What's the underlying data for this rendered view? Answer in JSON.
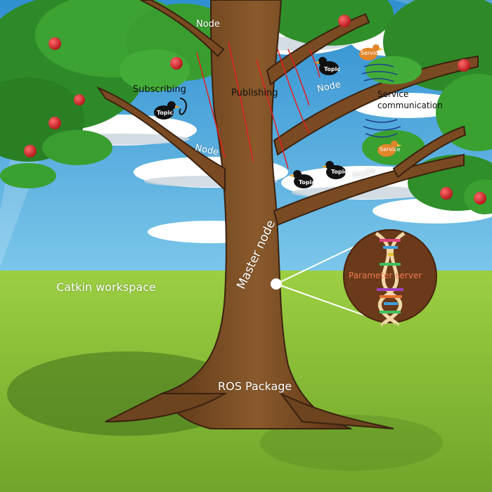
{
  "labels": {
    "node": "Node",
    "subscribing": "Subscribing",
    "publishing": "Publishing",
    "service_communication_line1": "Service",
    "service_communication_line2": "communication",
    "master_node": "Master node",
    "parameter_server": "Parameter server",
    "catkin_workspace": "Catkin workspace",
    "ros_package": "ROS Package"
  },
  "badges": {
    "topic": "Topic",
    "service": "Service"
  },
  "icons": [
    "crow-bird-icon",
    "orange-bird-icon",
    "ear-icon",
    "apple-icon",
    "dna-icon"
  ],
  "colors": {
    "sky": "#3aa6d8",
    "cloud": "#ffffff",
    "grass": "#8fbf3a",
    "trunk": "#7a4a22",
    "leaves": "#2f8f2a",
    "apple": "#d8242a",
    "signal_red": "#e02020",
    "signal_blue": "#1c3f88",
    "parameter_text": "#f07850"
  }
}
